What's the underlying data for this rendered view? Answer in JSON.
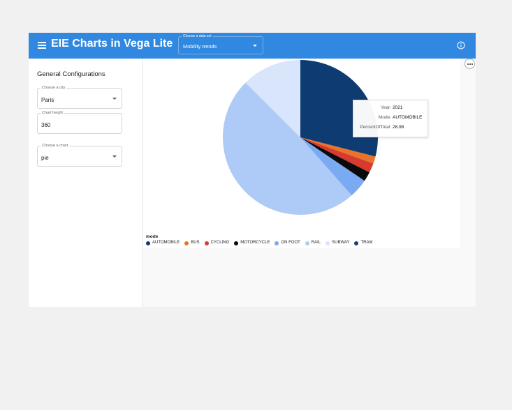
{
  "header": {
    "title": "EIE Charts in Vega Lite",
    "dataset_label": "Choose a data set",
    "dataset_value": "Mobility trends"
  },
  "sidebar": {
    "title": "General Configurations",
    "city_label": "Choose a city",
    "city_value": "Paris",
    "height_label": "Chart height",
    "height_value": "360",
    "chart_label": "Choose a chart",
    "chart_value": "pie"
  },
  "tooltip": {
    "rows": [
      {
        "key": "Year:",
        "value": "2021"
      },
      {
        "key": "Mode:",
        "value": "AUTOMOBILE"
      },
      {
        "key": "PercentOfTotal:",
        "value": "28.98"
      }
    ]
  },
  "chart_data": {
    "type": "pie",
    "legend_title": "mode",
    "legend_position": "bottom-left",
    "slices": [
      {
        "label": "AUTOMOBILE",
        "value": 28.98,
        "color": "#0f3b73"
      },
      {
        "label": "BUS",
        "value": 1.5,
        "color": "#e8732a"
      },
      {
        "label": "CYCLING",
        "value": 2.0,
        "color": "#d93a30"
      },
      {
        "label": "MOTORCYCLE",
        "value": 2.0,
        "color": "#0a0a0a"
      },
      {
        "label": "ON FOOT",
        "value": 4.0,
        "color": "#7aaaf2"
      },
      {
        "label": "RAIL",
        "value": 49.0,
        "color": "#aecaf6"
      },
      {
        "label": "SUBWAY",
        "value": 12.5,
        "color": "#d8e5fa"
      }
    ],
    "legend": [
      {
        "label": "AUTOMOBILE",
        "color": "#0f3b73"
      },
      {
        "label": "BUS",
        "color": "#e8732a"
      },
      {
        "label": "CYCLING",
        "color": "#d93a30"
      },
      {
        "label": "MOTORCYCLE",
        "color": "#0a0a0a"
      },
      {
        "label": "ON FOOT",
        "color": "#7aaaf2"
      },
      {
        "label": "RAIL",
        "color": "#aecaf6"
      },
      {
        "label": "SUBWAY",
        "color": "#d8e5fa"
      },
      {
        "label": "TRAM",
        "color": "#1b3f7a"
      }
    ]
  },
  "colors": {
    "topbar": "#3188e0",
    "page_bg": "#f1f1f1"
  }
}
